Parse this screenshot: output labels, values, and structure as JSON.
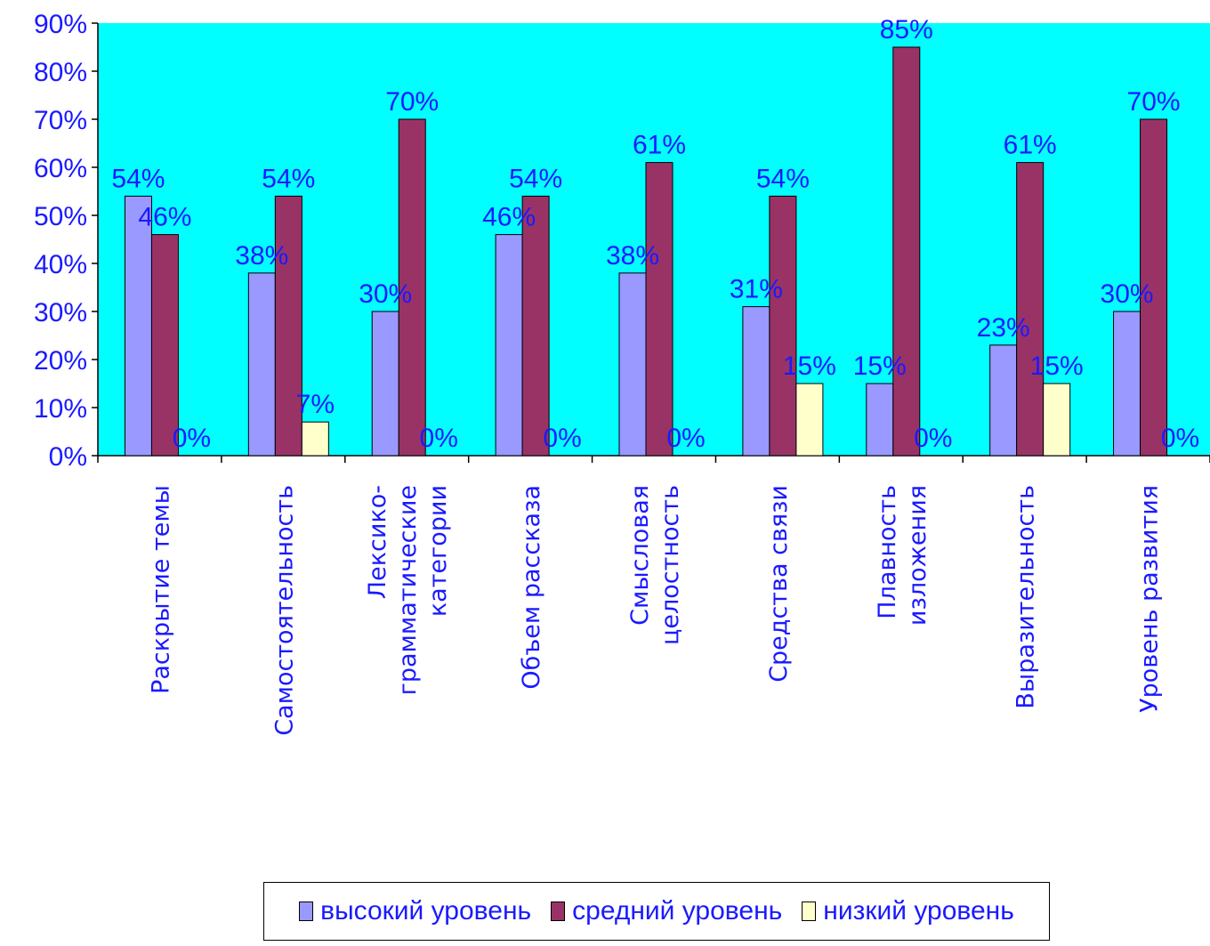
{
  "chart_data": {
    "type": "bar",
    "categories": [
      [
        "Раскрытие темы"
      ],
      [
        "Самостоятельность"
      ],
      [
        "Лексико-",
        "грамматические",
        "категории"
      ],
      [
        "Объем рассказа"
      ],
      [
        "Смысловая",
        "целостность"
      ],
      [
        "Средства связи"
      ],
      [
        "Плавность",
        "изложения"
      ],
      [
        "Выразительность"
      ],
      [
        "Уровень развития"
      ]
    ],
    "series": [
      {
        "name": "высокий уровень",
        "color": "#9999ff",
        "values": [
          54,
          38,
          30,
          46,
          38,
          31,
          15,
          23,
          30
        ]
      },
      {
        "name": "средний уровень",
        "color": "#993366",
        "values": [
          46,
          54,
          70,
          54,
          61,
          54,
          85,
          61,
          70
        ]
      },
      {
        "name": "низкий уровень",
        "color": "#ffffcc",
        "values": [
          0,
          7,
          0,
          0,
          0,
          15,
          0,
          15,
          0
        ]
      }
    ],
    "y_ticks": [
      "0%",
      "10%",
      "20%",
      "30%",
      "40%",
      "50%",
      "60%",
      "70%",
      "80%",
      "90%"
    ],
    "ylim": [
      0,
      90
    ],
    "unit": "%",
    "plot_background": "#00ffff",
    "grid": false,
    "legend_position": "bottom"
  }
}
